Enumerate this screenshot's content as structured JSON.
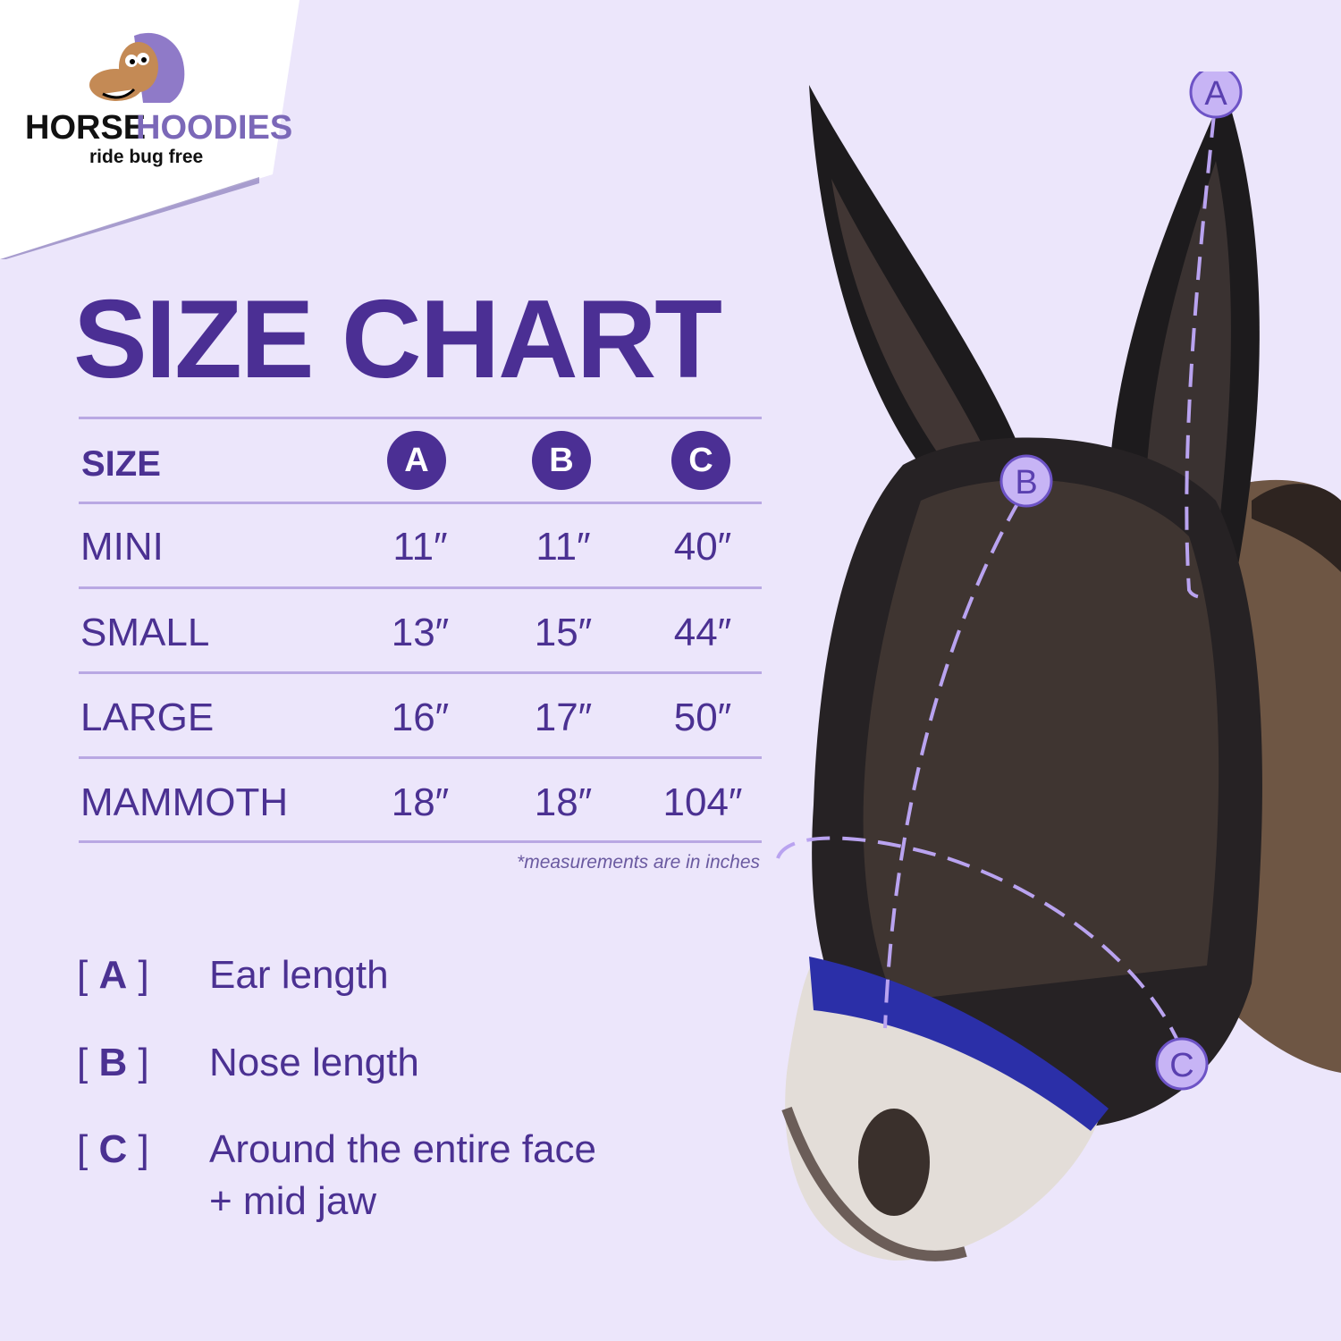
{
  "brand": {
    "name_part1": "HORSE",
    "name_part2": "HOODIES",
    "tagline": "ride bug free"
  },
  "title": "SIZE CHART",
  "table": {
    "header": {
      "size": "SIZE",
      "columns": [
        "A",
        "B",
        "C"
      ]
    },
    "rows": [
      {
        "size": "MINI",
        "values": [
          "11″",
          "11″",
          "40″"
        ]
      },
      {
        "size": "SMALL",
        "values": [
          "13″",
          "15″",
          "44″"
        ]
      },
      {
        "size": "LARGE",
        "values": [
          "16″",
          "17″",
          "50″"
        ]
      },
      {
        "size": "MAMMOTH",
        "values": [
          "18″",
          "18″",
          "104″"
        ]
      }
    ],
    "note": "*measurements are in inches"
  },
  "legend": [
    {
      "open": "[",
      "key": "A",
      "close": "]",
      "text": "Ear length",
      "text2": ""
    },
    {
      "open": "[",
      "key": "B",
      "close": "]",
      "text": "Nose length",
      "text2": ""
    },
    {
      "open": "[",
      "key": "C",
      "close": "]",
      "text": "Around the entire face",
      "text2": "+ mid jaw"
    }
  ],
  "markers": [
    "A",
    "B",
    "C"
  ],
  "colors": {
    "accent": "#4b2f94",
    "background": "#ece6fb",
    "divider": "#b9a8e3",
    "marker": "#b9a3f0"
  }
}
